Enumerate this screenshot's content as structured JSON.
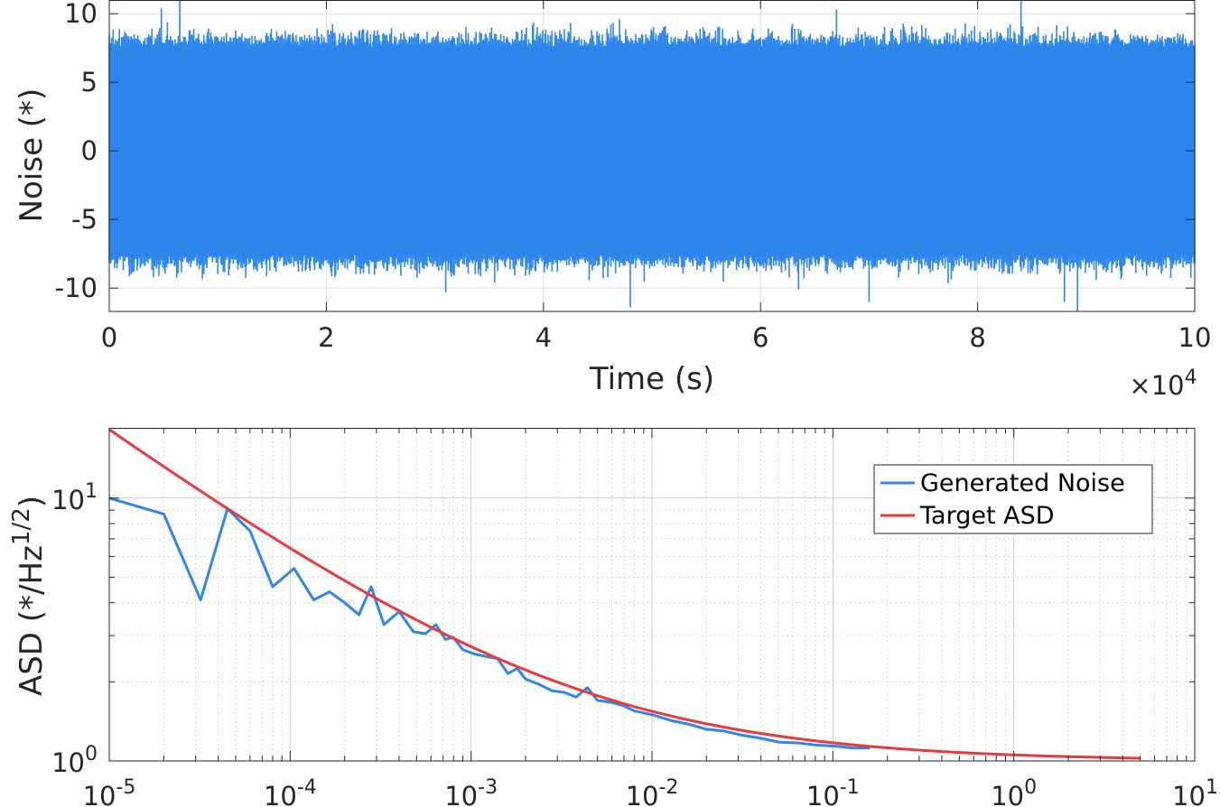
{
  "chart_data": [
    {
      "type": "line",
      "ylabel": "Noise (*)",
      "xlabel": "Time (s)",
      "x_exponent": "×10",
      "x_exponent_power": "4",
      "xlim": [
        0,
        100000
      ],
      "ylim": [
        -11.7,
        11
      ],
      "x_ticks": [
        0,
        20000,
        40000,
        60000,
        80000,
        100000
      ],
      "x_tick_labels": [
        "0",
        "2",
        "4",
        "6",
        "8",
        "10"
      ],
      "y_ticks": [
        -10,
        -5,
        0,
        5,
        10
      ],
      "y_tick_labels": [
        "-10",
        "-5",
        "0",
        "5",
        "10"
      ],
      "grid": true,
      "series": [
        {
          "color": "#2e86ec",
          "envelope_typical": 7.6,
          "extremes": [
            [
              6500,
              11.2
            ],
            [
              4800,
              10.4
            ],
            [
              31000,
              -10.3
            ],
            [
              48000,
              -11.4
            ],
            [
              63500,
              -10.1
            ],
            [
              70000,
              -11
            ],
            [
              84000,
              11.1
            ],
            [
              88000,
              -11
            ],
            [
              89200,
              -11.7
            ],
            [
              67000,
              10.3
            ]
          ]
        }
      ]
    },
    {
      "type": "line",
      "ylabel": "ASD (*/Hz",
      "ylabel_sup": "1/2",
      "ylabel_end": ")",
      "xscale": "log",
      "yscale": "log",
      "xlim": [
        1e-05,
        10
      ],
      "ylim": [
        1,
        18.5
      ],
      "x_ticks": [
        1e-05,
        0.0001,
        0.001,
        0.01,
        0.1,
        1,
        10
      ],
      "x_tick_base": [
        "10",
        "10",
        "10",
        "10",
        "10",
        "10",
        "10"
      ],
      "x_tick_exp": [
        "-5",
        "-4",
        "-3",
        "-2",
        "-1",
        "0",
        "1"
      ],
      "y_ticks": [
        1,
        10
      ],
      "y_tick_base": [
        "10",
        "10"
      ],
      "y_tick_exp": [
        "0",
        "1"
      ],
      "grid": true,
      "legend_position": "top-right",
      "series": [
        {
          "name": "Generated Noise",
          "color": "#2e86ec",
          "x": [
            1e-05,
            2e-05,
            3.2e-05,
            4.5e-05,
            6e-05,
            8e-05,
            0.000105,
            0.000135,
            0.000165,
            0.0002,
            0.00024,
            0.00028,
            0.00033,
            0.0004,
            0.00048,
            0.00056,
            0.00064,
            0.00072,
            0.0008,
            0.0009,
            0.00105,
            0.0012,
            0.0014,
            0.0016,
            0.0018,
            0.002,
            0.0024,
            0.0028,
            0.0033,
            0.0038,
            0.0044,
            0.005,
            0.006,
            0.007,
            0.008,
            0.01,
            0.013,
            0.016,
            0.02,
            0.025,
            0.032,
            0.04,
            0.05,
            0.065,
            0.08,
            0.1,
            0.13,
            0.16
          ],
          "y": [
            10,
            8.7,
            4.1,
            9.1,
            7.5,
            4.6,
            5.4,
            4.1,
            4.4,
            4.0,
            3.6,
            4.6,
            3.3,
            3.7,
            3.1,
            3.05,
            3.3,
            2.9,
            2.95,
            2.65,
            2.55,
            2.5,
            2.45,
            2.15,
            2.25,
            2.05,
            1.95,
            1.85,
            1.82,
            1.75,
            1.9,
            1.7,
            1.67,
            1.62,
            1.55,
            1.5,
            1.42,
            1.38,
            1.32,
            1.3,
            1.25,
            1.22,
            1.18,
            1.17,
            1.15,
            1.14,
            1.12,
            1.12
          ]
        },
        {
          "name": "Target ASD",
          "color": "#e8393c",
          "x": [
            1e-05,
            10
          ],
          "y": [
            18.5,
            1.01
          ]
        }
      ]
    }
  ]
}
